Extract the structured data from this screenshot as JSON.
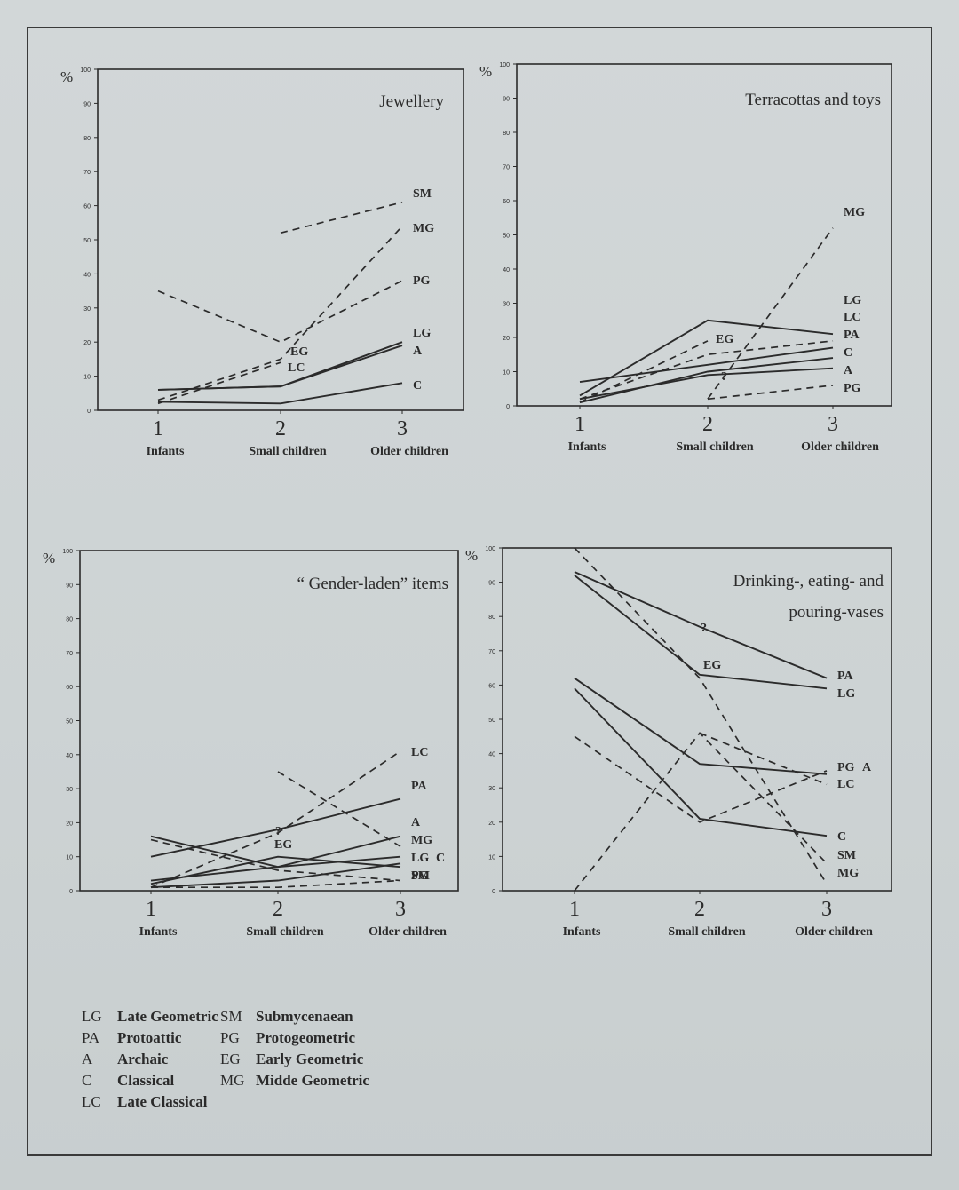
{
  "chart_data": [
    {
      "type": "line",
      "title": "Jewellery",
      "ylabel": "%",
      "ylim": [
        0,
        100
      ],
      "yticks": [
        0,
        10,
        20,
        30,
        40,
        50,
        60,
        70,
        80,
        90,
        100
      ],
      "x": [
        1,
        2,
        3
      ],
      "xtick_numbers": [
        "1",
        "2",
        "3"
      ],
      "xtick_labels": [
        "Infants",
        "Small children",
        "Older children"
      ],
      "series": [
        {
          "name": "SM",
          "values": [
            null,
            52,
            61
          ],
          "style": "dashed"
        },
        {
          "name": "MG",
          "values": [
            3,
            15,
            54
          ],
          "style": "dashed"
        },
        {
          "name": "PG",
          "values": [
            35,
            20,
            38
          ],
          "style": "dashed"
        },
        {
          "name": "LG",
          "values": [
            6,
            7,
            20
          ],
          "style": "solid"
        },
        {
          "name": "A",
          "values": [
            6,
            7,
            19
          ],
          "style": "solid"
        },
        {
          "name": "C",
          "values": [
            2.5,
            2,
            8
          ],
          "style": "solid"
        },
        {
          "name": "EG",
          "values": [
            2,
            14,
            null
          ],
          "style": "dashed"
        },
        {
          "name": "LC",
          "values": [
            null,
            13,
            null
          ],
          "style": "dashed"
        }
      ],
      "annotations": [
        "EG",
        "LC"
      ]
    },
    {
      "type": "line",
      "title": "Terracottas and toys",
      "ylabel": "%",
      "ylim": [
        0,
        100
      ],
      "yticks": [
        0,
        10,
        20,
        30,
        40,
        50,
        60,
        70,
        80,
        90,
        100
      ],
      "x": [
        1,
        2,
        3
      ],
      "xtick_numbers": [
        "1",
        "2",
        "3"
      ],
      "xtick_labels": [
        "Infants",
        "Small children",
        "Older children"
      ],
      "series": [
        {
          "name": "MG",
          "values": [
            null,
            2,
            52
          ],
          "style": "dashed"
        },
        {
          "name": "LG",
          "values": [
            3,
            25,
            21
          ],
          "style": "solid"
        },
        {
          "name": "LC",
          "values": [
            2,
            15,
            19
          ],
          "style": "dashed"
        },
        {
          "name": "PA",
          "values": [
            7,
            12,
            17
          ],
          "style": "solid"
        },
        {
          "name": "C",
          "values": [
            1,
            10,
            14
          ],
          "style": "solid"
        },
        {
          "name": "A",
          "values": [
            2,
            9,
            11
          ],
          "style": "solid"
        },
        {
          "name": "PG",
          "values": [
            null,
            2,
            6
          ],
          "style": "dashed"
        },
        {
          "name": "EG",
          "values": [
            1,
            19,
            null
          ],
          "style": "dashed"
        }
      ],
      "annotations": [
        "EG",
        "?"
      ]
    },
    {
      "type": "line",
      "title": "“ Gender-laden” items",
      "ylabel": "%",
      "ylim": [
        0,
        100
      ],
      "yticks": [
        0,
        10,
        20,
        30,
        40,
        50,
        60,
        70,
        80,
        90,
        100
      ],
      "x": [
        1,
        2,
        3
      ],
      "xtick_numbers": [
        "1",
        "2",
        "3"
      ],
      "xtick_labels": [
        "Infants",
        "Small children",
        "Older children"
      ],
      "series": [
        {
          "name": "LC",
          "values": [
            1,
            17,
            41
          ],
          "style": "dashed"
        },
        {
          "name": "PA",
          "values": [
            10,
            18,
            27
          ],
          "style": "solid"
        },
        {
          "name": "A",
          "values": [
            3,
            7,
            16
          ],
          "style": "solid"
        },
        {
          "name": "MG",
          "values": [
            null,
            35,
            13
          ],
          "style": "dashed"
        },
        {
          "name": "LG",
          "values": [
            16,
            7,
            10
          ],
          "style": "solid"
        },
        {
          "name": "C",
          "values": [
            1,
            3,
            8
          ],
          "style": "solid"
        },
        {
          "name": "PG",
          "values": [
            15,
            6,
            3
          ],
          "style": "dashed"
        },
        {
          "name": "SM",
          "values": [
            1,
            1,
            3
          ],
          "style": "dashed"
        },
        {
          "name": "EG",
          "values": [
            2,
            10,
            7
          ],
          "style": "solid"
        }
      ],
      "annotations": [
        "EG",
        "?"
      ]
    },
    {
      "type": "line",
      "title": "Drinking-, eating- and pouring-vases",
      "ylabel": "%",
      "ylim": [
        0,
        100
      ],
      "yticks": [
        0,
        10,
        20,
        30,
        40,
        50,
        60,
        70,
        80,
        90,
        100
      ],
      "x": [
        1,
        2,
        3
      ],
      "xtick_numbers": [
        "1",
        "2",
        "3"
      ],
      "xtick_labels": [
        "Infants",
        "Small children",
        "Older children"
      ],
      "series": [
        {
          "name": "PA",
          "values": [
            93,
            77,
            62
          ],
          "style": "solid"
        },
        {
          "name": "LG",
          "values": [
            92,
            63,
            59
          ],
          "style": "solid"
        },
        {
          "name": "PG",
          "values": [
            45,
            20,
            35
          ],
          "style": "dashed"
        },
        {
          "name": "A",
          "values": [
            62,
            37,
            34
          ],
          "style": "solid"
        },
        {
          "name": "LC",
          "values": [
            null,
            46,
            31
          ],
          "style": "dashed"
        },
        {
          "name": "C",
          "values": [
            59,
            21,
            16
          ],
          "style": "solid"
        },
        {
          "name": "SM",
          "values": [
            0,
            46,
            8
          ],
          "style": "dashed"
        },
        {
          "name": "MG",
          "values": [
            100,
            62,
            2
          ],
          "style": "dashed"
        },
        {
          "name": "EG",
          "values": [
            null,
            65,
            null
          ],
          "style": "dashed"
        }
      ],
      "annotations": [
        "EG",
        "?"
      ]
    }
  ],
  "legend": {
    "col1": [
      {
        "abbr": "LG",
        "name": "Late Geometric"
      },
      {
        "abbr": "PA",
        "name": "Protoattic"
      },
      {
        "abbr": "A",
        "name": "Archaic"
      },
      {
        "abbr": "C",
        "name": "Classical"
      },
      {
        "abbr": "LC",
        "name": "Late Classical"
      }
    ],
    "col2": [
      {
        "abbr": "SM",
        "name": "Submycenaean"
      },
      {
        "abbr": "PG",
        "name": "Protogeometric"
      },
      {
        "abbr": "EG",
        "name": "Early Geometric"
      },
      {
        "abbr": "MG",
        "name": "Midde Geometric"
      }
    ]
  },
  "colors": {
    "ink": "#2b2b2b",
    "paper": "#cfd5d6"
  }
}
